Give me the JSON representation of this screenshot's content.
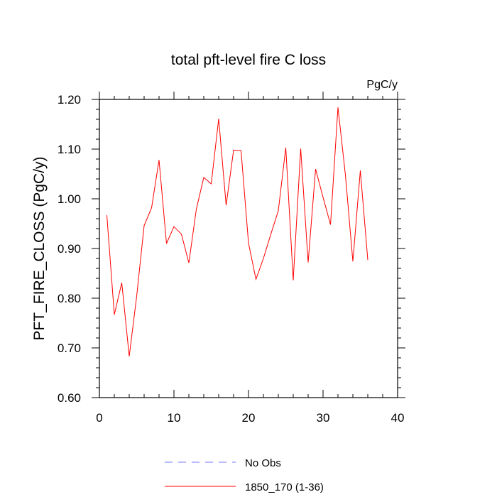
{
  "chart_data": {
    "type": "line",
    "title": "total pft-level fire C loss",
    "units_label": "PgC/y",
    "ylabel": "PFT_FIRE_CLOSS  (PgC/y)",
    "xlabel": "",
    "xlim": [
      0,
      40
    ],
    "ylim": [
      0.6,
      1.2
    ],
    "x_ticks": [
      0,
      10,
      20,
      30,
      40
    ],
    "x_tick_labels": [
      "0",
      "10",
      "20",
      "30",
      "40"
    ],
    "y_ticks": [
      0.6,
      0.7,
      0.8,
      0.9,
      1.0,
      1.1,
      1.2
    ],
    "y_tick_labels": [
      "0.60",
      "0.70",
      "0.80",
      "0.90",
      "1.00",
      "1.10",
      "1.20"
    ],
    "grid": false,
    "series": [
      {
        "name": "No Obs",
        "color": "#7777ff",
        "dashed": true,
        "x": [],
        "values": []
      },
      {
        "name": "1850_170 (1-36)",
        "color": "#ff0000",
        "dashed": false,
        "x": [
          1,
          2,
          3,
          4,
          5,
          6,
          7,
          8,
          9,
          10,
          11,
          12,
          13,
          14,
          15,
          16,
          17,
          18,
          19,
          20,
          21,
          22,
          23,
          24,
          25,
          26,
          27,
          28,
          29,
          30,
          31,
          32,
          33,
          34,
          35,
          36
        ],
        "values": [
          0.967,
          0.767,
          0.831,
          0.683,
          0.804,
          0.946,
          0.982,
          1.078,
          0.91,
          0.944,
          0.929,
          0.871,
          0.979,
          1.043,
          1.03,
          1.161,
          0.987,
          1.098,
          1.097,
          0.911,
          0.838,
          0.88,
          0.929,
          0.976,
          1.103,
          0.836,
          1.101,
          0.872,
          1.06,
          1.003,
          0.948,
          1.184,
          1.048,
          0.874,
          1.057,
          0.877
        ]
      }
    ],
    "legend": {
      "position": "bottom",
      "entries": [
        "No Obs",
        "1850_170 (1-36)"
      ]
    }
  }
}
